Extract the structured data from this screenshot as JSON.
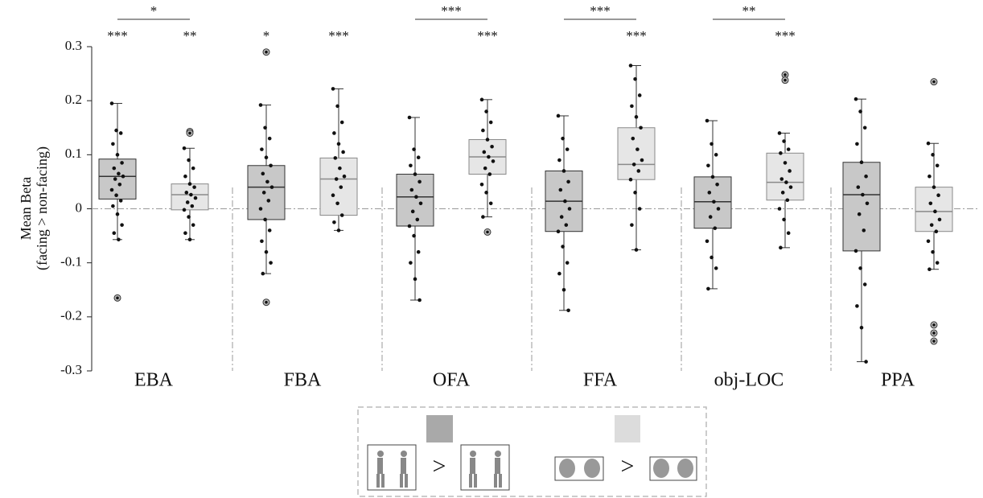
{
  "chart_data": {
    "type": "box",
    "ylabel": [
      "Mean Beta",
      "(facing > non-facing)"
    ],
    "ylim": [
      -0.3,
      0.3
    ],
    "yticks": [
      0.3,
      0.2,
      0.1,
      0,
      -0.1,
      -0.2,
      -0.3
    ],
    "categories": [
      "EBA",
      "FBA",
      "OFA",
      "FFA",
      "obj-LOC",
      "PPA"
    ],
    "comparisons": [
      "*",
      null,
      "***",
      "***",
      "**",
      null
    ],
    "series": [
      {
        "color": "#c8c8c8",
        "stroke": "#333333",
        "swatch": "#a9a9a9",
        "stars": [
          "***",
          "*",
          null,
          null,
          null,
          null
        ],
        "boxes": [
          {
            "whislo": -0.057,
            "q1": 0.018,
            "med": 0.06,
            "q3": 0.092,
            "whishi": 0.195,
            "fliers": [
              -0.165
            ],
            "points": [
              0.195,
              0.145,
              0.14,
              0.12,
              0.1,
              0.085,
              0.075,
              0.065,
              0.06,
              0.055,
              0.045,
              0.035,
              0.025,
              0.015,
              0.005,
              -0.01,
              -0.03,
              -0.045,
              -0.057
            ]
          },
          {
            "whislo": -0.12,
            "q1": -0.02,
            "med": 0.04,
            "q3": 0.08,
            "whishi": 0.192,
            "fliers": [
              0.29,
              -0.173
            ],
            "points": [
              0.192,
              0.15,
              0.13,
              0.11,
              0.095,
              0.08,
              0.065,
              0.05,
              0.04,
              0.03,
              0.015,
              0,
              -0.02,
              -0.04,
              -0.06,
              -0.08,
              -0.1,
              -0.12
            ]
          },
          {
            "whislo": -0.169,
            "q1": -0.032,
            "med": 0.022,
            "q3": 0.064,
            "whishi": 0.169,
            "fliers": [],
            "points": [
              0.169,
              0.11,
              0.095,
              0.08,
              0.064,
              0.05,
              0.035,
              0.022,
              0.01,
              -0.005,
              -0.02,
              -0.032,
              -0.05,
              -0.08,
              -0.1,
              -0.13,
              -0.169
            ]
          },
          {
            "whislo": -0.188,
            "q1": -0.042,
            "med": 0.014,
            "q3": 0.07,
            "whishi": 0.172,
            "fliers": [],
            "points": [
              0.172,
              0.13,
              0.11,
              0.09,
              0.07,
              0.05,
              0.035,
              0.014,
              0,
              -0.015,
              -0.03,
              -0.042,
              -0.07,
              -0.1,
              -0.12,
              -0.15,
              -0.188
            ]
          },
          {
            "whislo": -0.148,
            "q1": -0.036,
            "med": 0.013,
            "q3": 0.059,
            "whishi": 0.163,
            "fliers": [],
            "points": [
              0.163,
              0.12,
              0.1,
              0.08,
              0.059,
              0.045,
              0.03,
              0.013,
              0,
              -0.015,
              -0.036,
              -0.06,
              -0.09,
              -0.11,
              -0.148
            ]
          },
          {
            "whislo": -0.283,
            "q1": -0.078,
            "med": 0.026,
            "q3": 0.086,
            "whishi": 0.203,
            "fliers": [],
            "points": [
              0.203,
              0.18,
              0.15,
              0.12,
              0.086,
              0.06,
              0.04,
              0.026,
              0.01,
              -0.01,
              -0.04,
              -0.078,
              -0.11,
              -0.14,
              -0.18,
              -0.22,
              -0.283
            ]
          }
        ]
      },
      {
        "color": "#e6e6e6",
        "stroke": "#8a8a8a",
        "swatch": "#dcdcdc",
        "stars": [
          "**",
          "***",
          "***",
          "***",
          "***",
          null
        ],
        "boxes": [
          {
            "whislo": -0.057,
            "q1": -0.002,
            "med": 0.026,
            "q3": 0.046,
            "whishi": 0.112,
            "fliers": [
              0.143,
              0.14
            ],
            "points": [
              0.112,
              0.09,
              0.075,
              0.06,
              0.046,
              0.04,
              0.03,
              0.026,
              0.02,
              0.012,
              0.005,
              -0.002,
              -0.015,
              -0.03,
              -0.045,
              -0.057
            ]
          },
          {
            "whislo": -0.04,
            "q1": -0.012,
            "med": 0.055,
            "q3": 0.094,
            "whishi": 0.222,
            "fliers": [],
            "points": [
              0.222,
              0.19,
              0.16,
              0.14,
              0.12,
              0.105,
              0.094,
              0.075,
              0.06,
              0.055,
              0.04,
              0.025,
              0.01,
              -0.012,
              -0.025,
              -0.04
            ]
          },
          {
            "whislo": -0.015,
            "q1": 0.064,
            "med": 0.096,
            "q3": 0.128,
            "whishi": 0.202,
            "fliers": [
              -0.043
            ],
            "points": [
              0.202,
              0.18,
              0.16,
              0.145,
              0.128,
              0.115,
              0.105,
              0.096,
              0.088,
              0.075,
              0.064,
              0.045,
              0.03,
              0.01,
              -0.015
            ]
          },
          {
            "whislo": -0.076,
            "q1": 0.054,
            "med": 0.082,
            "q3": 0.15,
            "whishi": 0.265,
            "fliers": [],
            "points": [
              0.265,
              0.24,
              0.21,
              0.19,
              0.17,
              0.15,
              0.13,
              0.11,
              0.09,
              0.082,
              0.07,
              0.054,
              0.03,
              0,
              -0.03,
              -0.076
            ]
          },
          {
            "whislo": -0.072,
            "q1": 0.016,
            "med": 0.049,
            "q3": 0.103,
            "whishi": 0.14,
            "fliers": [
              0.248,
              0.238
            ],
            "points": [
              0.14,
              0.125,
              0.11,
              0.103,
              0.085,
              0.07,
              0.055,
              0.049,
              0.04,
              0.03,
              0.016,
              0,
              -0.02,
              -0.045,
              -0.072
            ]
          },
          {
            "whislo": -0.112,
            "q1": -0.042,
            "med": -0.005,
            "q3": 0.04,
            "whishi": 0.121,
            "fliers": [
              0.235,
              -0.215,
              -0.23,
              -0.245
            ],
            "points": [
              0.121,
              0.1,
              0.08,
              0.06,
              0.04,
              0.025,
              0.01,
              -0.005,
              -0.02,
              -0.03,
              -0.042,
              -0.06,
              -0.08,
              -0.1,
              -0.112
            ]
          }
        ]
      }
    ],
    "legend_symbol": ">"
  }
}
